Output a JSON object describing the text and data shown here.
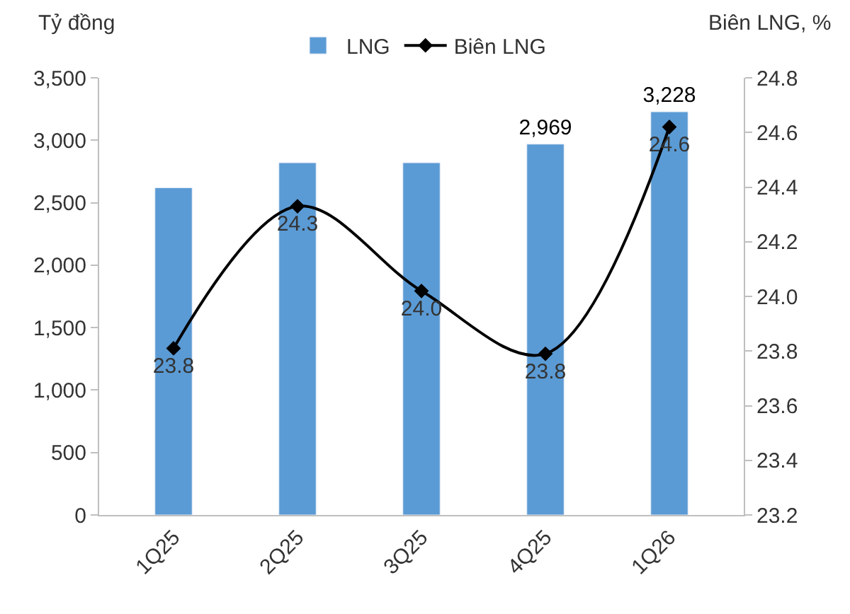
{
  "chart_data": {
    "type": "bar",
    "categories": [
      "1Q25",
      "2Q25",
      "3Q25",
      "4Q25",
      "1Q26"
    ],
    "ylabel": "Tỷ đồng",
    "y2label": "Biên LNG, %",
    "series": [
      {
        "name": "LNG",
        "color": "#5b9bd5",
        "values": [
          2620,
          2820,
          2820,
          2969,
          3228
        ],
        "value_labels": [
          null,
          null,
          null,
          "2,969",
          "3,228"
        ]
      },
      {
        "name": "Biên LNG",
        "type": "line",
        "axis": "y2",
        "color": "#000000",
        "marker": "diamond",
        "values": [
          23.81,
          24.33,
          24.02,
          23.79,
          24.62
        ],
        "value_labels": [
          "23.8",
          "24.3",
          "24.0",
          "23.8",
          "24.6"
        ]
      }
    ],
    "ylim": [
      0,
      3500
    ],
    "yticks": [
      0,
      {
        "value": 500,
        "label": "500"
      },
      {
        "value": 1000,
        "label": "1,000"
      },
      {
        "value": 1500,
        "label": "1,500"
      },
      {
        "value": 2000,
        "label": "2,000"
      },
      {
        "value": 2500,
        "label": "2,500"
      },
      {
        "value": 3000,
        "label": "3,000"
      },
      {
        "value": 3500,
        "label": "3,500"
      }
    ],
    "y2lim": [
      23.2,
      24.8
    ],
    "y2ticks": [
      23.2,
      23.4,
      23.6,
      23.8,
      {
        "value": 24.0,
        "label": "24.0"
      },
      24.2,
      24.4,
      24.6,
      24.8
    ],
    "legend": "top"
  }
}
